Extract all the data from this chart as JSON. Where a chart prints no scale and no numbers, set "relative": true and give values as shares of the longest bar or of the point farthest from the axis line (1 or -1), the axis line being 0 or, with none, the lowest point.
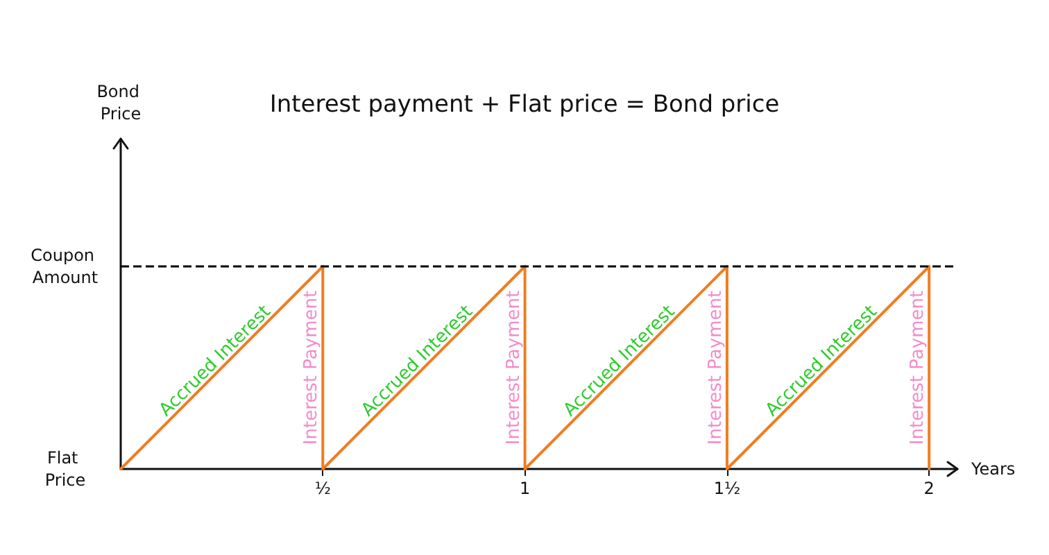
{
  "chart_data": {
    "type": "line",
    "title": "Interest payment + Flat price = Bond price",
    "xlabel": "Years",
    "relative": true,
    "x": [
      0,
      0.5,
      0.5,
      1,
      1,
      1.5,
      1.5,
      2,
      2
    ],
    "series": [
      {
        "color": "#ef7d22",
        "values": [
          0,
          1,
          0,
          1,
          0,
          1,
          0,
          1,
          0
        ]
      }
    ],
    "xlim": [
      0,
      2.07
    ],
    "xticks": [
      {
        "value": 0.5,
        "label": "½"
      },
      1,
      {
        "value": 1.5,
        "label": "1½"
      },
      2
    ],
    "ref_lines": [
      {
        "axis": "y",
        "value": 1,
        "label": "Coupon Amount",
        "color": "#000000",
        "line_style": "dashed"
      }
    ],
    "annotations": [
      "Bond Price",
      {
        "text": "Flat Price",
        "x": 0,
        "y": 0
      },
      {
        "text": "Accrued Interest",
        "x": 0.25,
        "y": 0.5
      },
      {
        "text": "Interest Payment",
        "x": 0.5,
        "y": 0.5
      },
      {
        "text": "Accrued Interest",
        "x": 0.75,
        "y": 0.5
      },
      {
        "text": "Interest Payment",
        "x": 1,
        "y": 0.5
      },
      {
        "text": "Accrued Interest",
        "x": 1.25,
        "y": 0.5
      },
      {
        "text": "Interest Payment",
        "x": 1.5,
        "y": 0.5
      },
      {
        "text": "Accrued Interest",
        "x": 1.75,
        "y": 0.5
      },
      {
        "text": "Interest Payment",
        "x": 2,
        "y": 0.5
      }
    ],
    "grid": false,
    "marker": "none",
    "line_style": "solid"
  }
}
